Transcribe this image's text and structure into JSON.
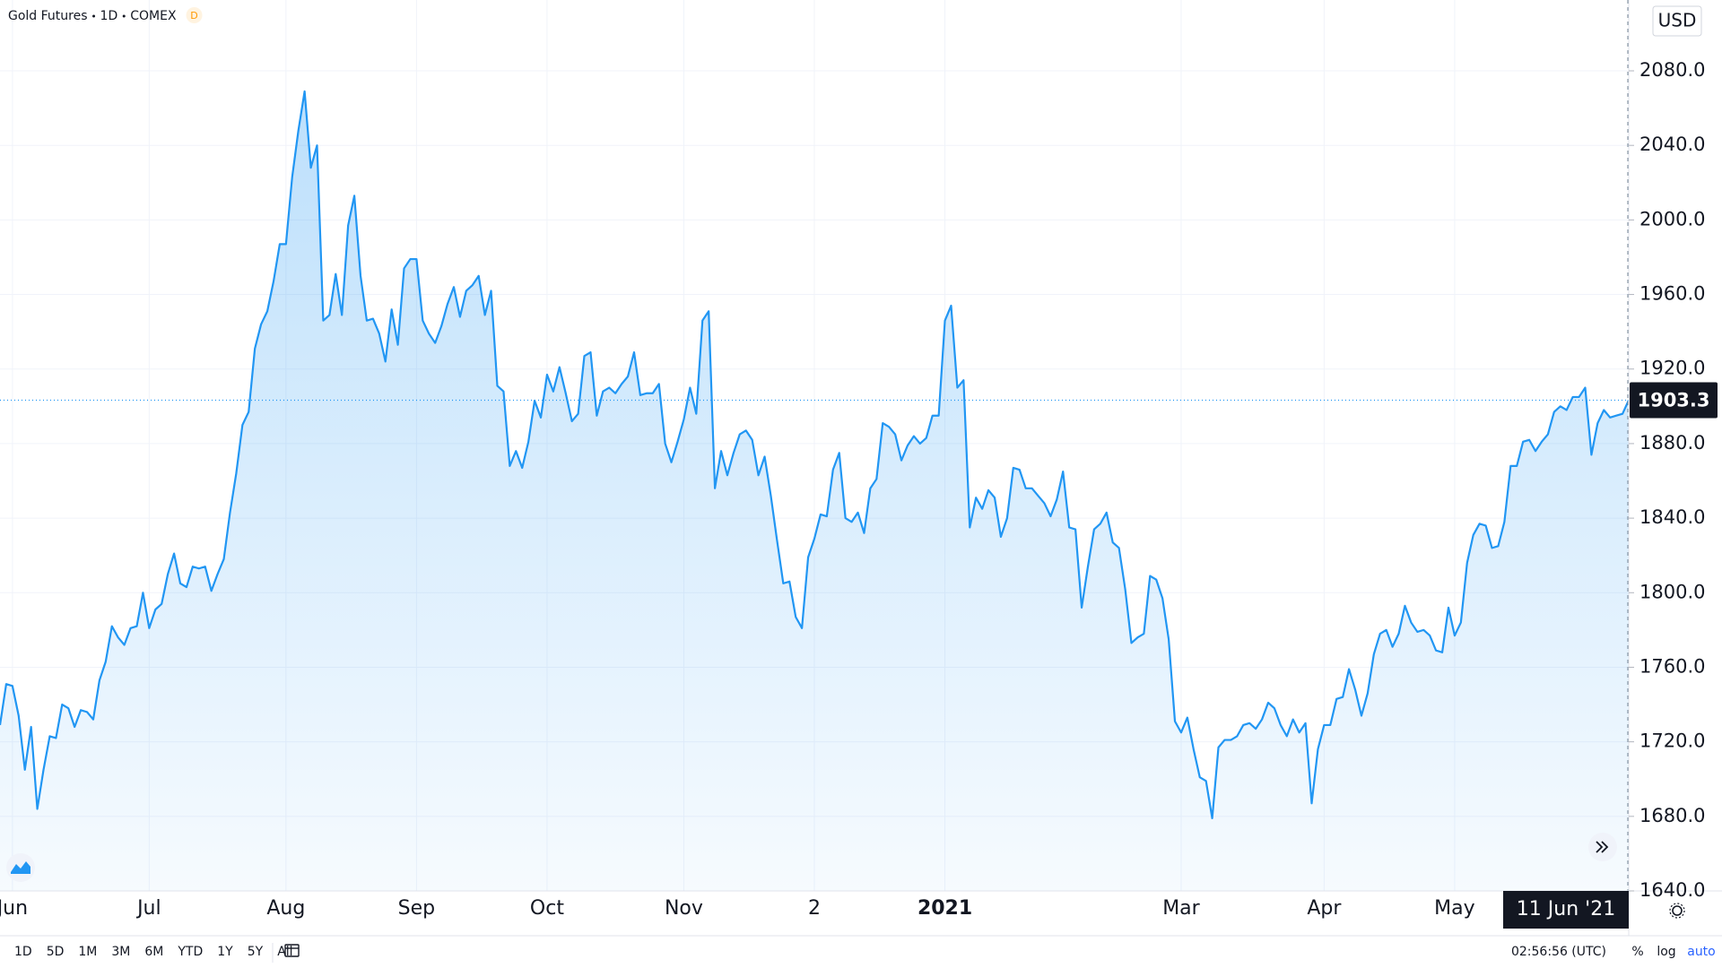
{
  "header": {
    "symbol": "Gold Futures",
    "interval": "1D",
    "exchange": "COMEX",
    "badge": "D"
  },
  "chart_data": {
    "type": "area",
    "currency": "USD",
    "crosshair_label": "11 Jun '21",
    "color": "#2196f3",
    "grid": true,
    "categories": [
      null,
      null,
      "Jun",
      null,
      null,
      null,
      null,
      null,
      null,
      null,
      null,
      null,
      null,
      null,
      null,
      null,
      null,
      null,
      null,
      null,
      null,
      null,
      null,
      null,
      "Jul",
      null,
      null,
      null,
      null,
      null,
      null,
      null,
      null,
      null,
      null,
      null,
      null,
      null,
      null,
      null,
      null,
      null,
      null,
      null,
      null,
      null,
      "Aug",
      null,
      null,
      null,
      null,
      null,
      null,
      null,
      null,
      null,
      null,
      null,
      null,
      null,
      null,
      null,
      null,
      null,
      null,
      null,
      null,
      "Sep",
      null,
      null,
      null,
      null,
      null,
      null,
      null,
      null,
      null,
      null,
      null,
      null,
      null,
      null,
      null,
      null,
      null,
      null,
      null,
      null,
      "Oct",
      null,
      null,
      null,
      null,
      null,
      null,
      null,
      null,
      null,
      null,
      null,
      null,
      null,
      null,
      null,
      null,
      null,
      null,
      null,
      null,
      null,
      "Nov",
      null,
      null,
      null,
      null,
      null,
      null,
      null,
      null,
      null,
      null,
      null,
      null,
      null,
      null,
      null,
      null,
      null,
      null,
      null,
      null,
      "2",
      null,
      null,
      null,
      null,
      null,
      null,
      null,
      null,
      null,
      null,
      null,
      null,
      null,
      null,
      null,
      null,
      null,
      null,
      null,
      null,
      "2021",
      null,
      null,
      null,
      null,
      null,
      null,
      null,
      null,
      null,
      null,
      null,
      null,
      null,
      null,
      null,
      null,
      null,
      null,
      null,
      null,
      null,
      null,
      null,
      null,
      null,
      null,
      null,
      null,
      null,
      null,
      null,
      null,
      null,
      null,
      null,
      null,
      null,
      "Mar",
      null,
      null,
      null,
      null,
      null,
      null,
      null,
      null,
      null,
      null,
      null,
      null,
      null,
      null,
      null,
      null,
      null,
      null,
      null,
      null,
      null,
      null,
      "Apr",
      null,
      null,
      null,
      null,
      null,
      null,
      null,
      null,
      null,
      null,
      null,
      null,
      null,
      null,
      null,
      null,
      null,
      null,
      null,
      null,
      "May",
      null,
      null,
      null,
      null,
      null,
      null,
      null,
      null,
      null,
      null,
      null,
      null,
      null,
      null,
      null,
      null,
      null,
      null,
      null,
      null,
      null,
      null,
      null,
      null,
      null,
      null,
      null,
      null
    ],
    "values": [
      1729,
      1751,
      1750,
      1734,
      1705,
      1728,
      1684,
      1705,
      1723,
      1722,
      1740,
      1738,
      1728,
      1737,
      1736,
      1732,
      1753,
      1763,
      1782,
      1776,
      1772,
      1781,
      1782,
      1800,
      1781,
      1791,
      1794,
      1810,
      1821,
      1805,
      1803,
      1814,
      1813,
      1814,
      1801,
      1810,
      1818,
      1843,
      1864,
      1890,
      1897,
      1931,
      1944,
      1951,
      1967,
      1987,
      1987,
      2023,
      2048,
      2069,
      2028,
      2040,
      1946,
      1949,
      1971,
      1949,
      1997,
      2013,
      1970,
      1946,
      1947,
      1939,
      1924,
      1952,
      1933,
      1974,
      1979,
      1979,
      1946,
      1939,
      1934,
      1943,
      1955,
      1964,
      1948,
      1962,
      1965,
      1970,
      1949,
      1962,
      1911,
      1908,
      1868,
      1876,
      1867,
      1881,
      1903,
      1894,
      1917,
      1908,
      1921,
      1907,
      1892,
      1896,
      1927,
      1929,
      1895,
      1908,
      1910,
      1907,
      1912,
      1916,
      1929,
      1906,
      1907,
      1907,
      1912,
      1880,
      1870,
      1881,
      1893,
      1910,
      1896,
      1946,
      1951,
      1856,
      1876,
      1863,
      1875,
      1885,
      1887,
      1882,
      1863,
      1873,
      1852,
      1828,
      1805,
      1806,
      1787,
      1781,
      1819,
      1829,
      1842,
      1841,
      1866,
      1875,
      1840,
      1838,
      1843,
      1832,
      1856,
      1861,
      1891,
      1889,
      1885,
      1871,
      1879,
      1884,
      1880,
      1883,
      1895,
      1895,
      1946,
      1954,
      1910,
      1914,
      1835,
      1851,
      1845,
      1855,
      1851,
      1830,
      1840,
      1867,
      1866,
      1856,
      1856,
      1852,
      1848,
      1841,
      1850,
      1865,
      1835,
      1834,
      1792,
      1814,
      1834,
      1837,
      1843,
      1827,
      1824,
      1802,
      1773,
      1776,
      1778,
      1809,
      1807,
      1797,
      1775,
      1731,
      1725,
      1733,
      1716,
      1701,
      1699,
      1679,
      1717,
      1721,
      1721,
      1723,
      1729,
      1730,
      1727,
      1732,
      1741,
      1738,
      1729,
      1723,
      1732,
      1725,
      1730,
      1687,
      1716,
      1729,
      1729,
      1743,
      1744,
      1759,
      1748,
      1734,
      1746,
      1767,
      1778,
      1780,
      1771,
      1778,
      1793,
      1784,
      1779,
      1780,
      1777,
      1769,
      1768,
      1792,
      1777,
      1784,
      1816,
      1831,
      1837,
      1836,
      1824,
      1825,
      1838,
      1868,
      1868,
      1881,
      1882,
      1876,
      1881,
      1885,
      1897,
      1900,
      1898,
      1905,
      1905,
      1910,
      1874,
      1891,
      1898,
      1894,
      1895,
      1896,
      1903.3
    ],
    "ylim": [
      1640,
      2118
    ],
    "yticks": [
      {
        "value": 1640,
        "label": "1640.0"
      },
      {
        "value": 1680,
        "label": "1680.0"
      },
      {
        "value": 1720,
        "label": "1720.0"
      },
      {
        "value": 1760,
        "label": "1760.0"
      },
      {
        "value": 1800,
        "label": "1800.0"
      },
      {
        "value": 1840,
        "label": "1840.0"
      },
      {
        "value": 1880,
        "label": "1880.0"
      },
      {
        "value": 1920,
        "label": "1920.0"
      },
      {
        "value": 1960,
        "label": "1960.0"
      },
      {
        "value": 2000,
        "label": "2000.0"
      },
      {
        "value": 2040,
        "label": "2040.0"
      },
      {
        "value": 2080,
        "label": "2080.0"
      }
    ]
  },
  "toolbar": {
    "ranges": [
      "1D",
      "5D",
      "1M",
      "3M",
      "6M",
      "YTD",
      "1Y",
      "5Y",
      "All"
    ],
    "clock": "02:56:56 (UTC)",
    "options": [
      "%",
      "log",
      "auto"
    ]
  }
}
